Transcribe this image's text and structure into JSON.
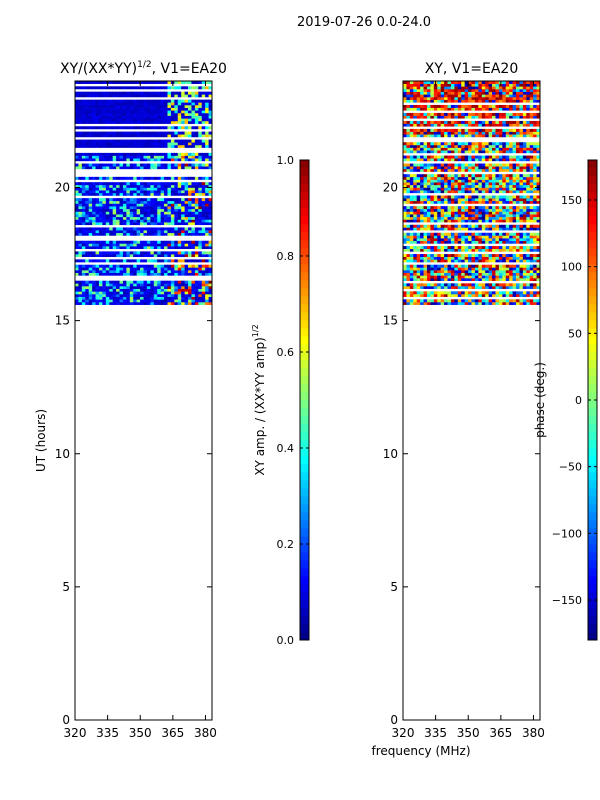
{
  "figure": {
    "suptitle": "2019-07-26 0.0-24.0",
    "shared_xlabel": "frequency (MHz)"
  },
  "chart_data": [
    {
      "type": "heatmap",
      "title_main": "XY/(XX*YY)",
      "title_sup": "1/2",
      "title_rest": ", V1=EA20",
      "xlabel": "",
      "ylabel": "UT (hours)",
      "xlim": [
        320,
        383
      ],
      "ylim": [
        0,
        24
      ],
      "xticks": [
        320,
        335,
        350,
        365,
        380
      ],
      "yticks": [
        0,
        5,
        10,
        15,
        20
      ],
      "data_hours": [
        15.6,
        24.0
      ],
      "colorbar": {
        "label_main": "XY amp. / (XX*YY amp)",
        "label_sup": "1/2",
        "range": [
          0.0,
          1.0
        ],
        "ticks": [
          0.0,
          0.2,
          0.4,
          0.6,
          0.8,
          1.0
        ],
        "tick_labels": [
          "0.0",
          "0.2",
          "0.4",
          "0.6",
          "0.8",
          "1.0"
        ],
        "colormap": "jet"
      }
    },
    {
      "type": "heatmap",
      "title_main": "XY, V1=EA20",
      "title_sup": "",
      "title_rest": "",
      "xlabel": "frequency (MHz)",
      "ylabel": "",
      "xlim": [
        320,
        383
      ],
      "ylim": [
        0,
        24
      ],
      "xticks": [
        320,
        335,
        350,
        365,
        380
      ],
      "yticks": [
        0,
        5,
        10,
        15,
        20
      ],
      "data_hours": [
        15.6,
        24.0
      ],
      "colorbar": {
        "label_main": "phase (deg.)",
        "label_sup": "",
        "range": [
          -180,
          180
        ],
        "ticks": [
          -150,
          -100,
          -50,
          0,
          50,
          100,
          150
        ],
        "tick_labels": [
          "−150",
          "−100",
          "−50",
          "0",
          "50",
          "100",
          "150"
        ],
        "colormap": "jet"
      }
    }
  ]
}
